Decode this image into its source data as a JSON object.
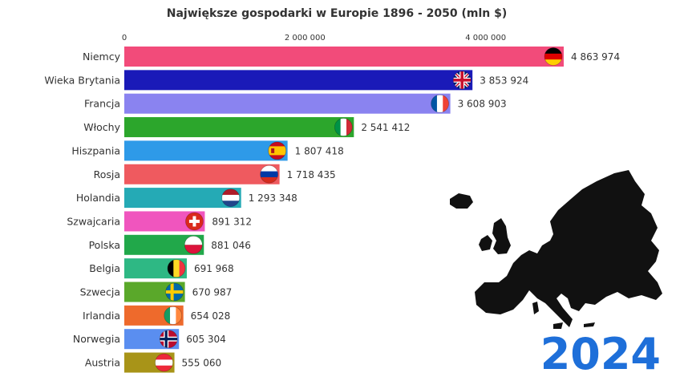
{
  "colors": {
    "year": "#1e6fd9",
    "map": "#111111",
    "text": "#333333"
  },
  "year_label": "2024",
  "chart_data": {
    "type": "bar",
    "orientation": "horizontal",
    "title": "Największe gospodarki w Europie 1896 - 2050 (mln $)",
    "xlim": [
      0,
      4863974
    ],
    "x_ticks": [
      0,
      2000000,
      4000000
    ],
    "x_tick_labels": [
      "0",
      "2 000 000",
      "4 000 000"
    ],
    "grid": false,
    "categories": [
      "Niemcy",
      "Wieka Brytania",
      "Francja",
      "Włochy",
      "Hiszpania",
      "Rosja",
      "Holandia",
      "Szwajcaria",
      "Polska",
      "Belgia",
      "Szwecja",
      "Irlandia",
      "Norwegia",
      "Austria"
    ],
    "values": [
      4863974,
      3853924,
      3608903,
      2541412,
      1807418,
      1718435,
      1293348,
      891312,
      881046,
      691968,
      670987,
      654028,
      605304,
      555060
    ],
    "value_labels": [
      "4 863 974",
      "3 853 924",
      "3 608 903",
      "2 541 412",
      "1 807 418",
      "1 718 435",
      "1 293 348",
      "891 312",
      "881 046",
      "691 968",
      "670 987",
      "654 028",
      "605 304",
      "555 060"
    ],
    "bar_colors": [
      "#f24b7a",
      "#1a1ab8",
      "#8a83f0",
      "#2ca62c",
      "#2e9ae8",
      "#ef5a5f",
      "#25aab5",
      "#f055be",
      "#21a84a",
      "#2eb884",
      "#5aa82a",
      "#ee6a2c",
      "#5a8ef0",
      "#a89418"
    ],
    "flag_icons": [
      "germany-flag-icon",
      "uk-flag-icon",
      "france-flag-icon",
      "italy-flag-icon",
      "spain-flag-icon",
      "russia-flag-icon",
      "netherlands-flag-icon",
      "switzerland-flag-icon",
      "poland-flag-icon",
      "belgium-flag-icon",
      "sweden-flag-icon",
      "ireland-flag-icon",
      "norway-flag-icon",
      "austria-flag-icon"
    ]
  }
}
